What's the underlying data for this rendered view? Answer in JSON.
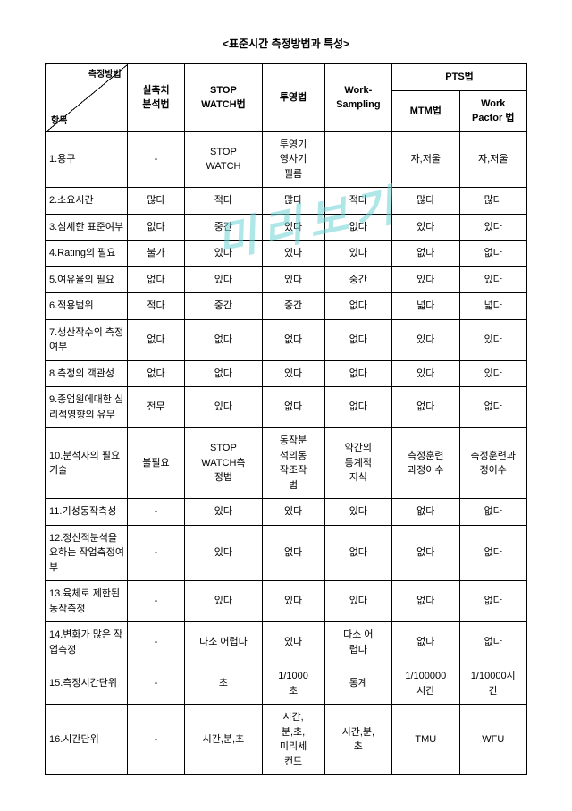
{
  "title": "<표준시간 측정방법과 특성>",
  "watermark": "미리보기",
  "header": {
    "diag_top": "측정방법",
    "diag_bottom": "항목",
    "c2": "실측치\n분석법",
    "c3": "STOP\nWATCH법",
    "c4": "투영법",
    "c5": "Work-\nSampling",
    "pts": "PTS법",
    "c6": "MTM법",
    "c7": "Work\nPactor 법"
  },
  "rows": [
    {
      "label": "1.용구",
      "c2": "-",
      "c3": "STOP\nWATCH",
      "c4": "투영기\n영사기\n필름",
      "c5": "",
      "c6": "자,저울",
      "c7": "자,저울"
    },
    {
      "label": "2.소요시간",
      "c2": "많다",
      "c3": "적다",
      "c4": "많다",
      "c5": "적다",
      "c6": "많다",
      "c7": "많다"
    },
    {
      "label": "3.섬세한 표준여부",
      "c2": "없다",
      "c3": "중간",
      "c4": "있다",
      "c5": "없다",
      "c6": "있다",
      "c7": "있다"
    },
    {
      "label": "4.Rating의 필요",
      "c2": "불가",
      "c3": "있다",
      "c4": "있다",
      "c5": "있다",
      "c6": "없다",
      "c7": "없다"
    },
    {
      "label": "5.여유율의 필요",
      "c2": "없다",
      "c3": "있다",
      "c4": "있다",
      "c5": "중간",
      "c6": "있다",
      "c7": "있다"
    },
    {
      "label": "6.적용범위",
      "c2": "적다",
      "c3": "중간",
      "c4": "중간",
      "c5": "없다",
      "c6": "넓다",
      "c7": "넓다"
    },
    {
      "label": "7.생산작수의 측정여부",
      "c2": "없다",
      "c3": "없다",
      "c4": "없다",
      "c5": "없다",
      "c6": "있다",
      "c7": "있다"
    },
    {
      "label": "8.측정의 객관성",
      "c2": "없다",
      "c3": "없다",
      "c4": "있다",
      "c5": "없다",
      "c6": "있다",
      "c7": "있다"
    },
    {
      "label": "9.종업원에대한 심리적영향의 유무",
      "c2": "전무",
      "c3": "있다",
      "c4": "없다",
      "c5": "없다",
      "c6": "없다",
      "c7": "없다"
    },
    {
      "label": "10.분석자의 필요기술",
      "c2": "불필요",
      "c3": "STOP\nWATCH측\n정법",
      "c4": "동작분\n석의동\n작조작\n법",
      "c5": "약간의\n통계적\n지식",
      "c6": "측정훈련\n과정이수",
      "c7": "측정훈련과\n정이수"
    },
    {
      "label": "11.기성동작측성",
      "c2": "-",
      "c3": "있다",
      "c4": "있다",
      "c5": "있다",
      "c6": "없다",
      "c7": "없다"
    },
    {
      "label": "12.정신적분석을 요하는 작업측정여부",
      "c2": "-",
      "c3": "있다",
      "c4": "없다",
      "c5": "없다",
      "c6": "없다",
      "c7": "없다"
    },
    {
      "label": "13.육체로 제한된 동작측정",
      "c2": "-",
      "c3": "있다",
      "c4": "있다",
      "c5": "있다",
      "c6": "없다",
      "c7": "없다"
    },
    {
      "label": "14.변화가 많은 작업측정",
      "c2": "-",
      "c3": "다소 어렵다",
      "c4": "있다",
      "c5": "다소 어\n렵다",
      "c6": "없다",
      "c7": "없다"
    },
    {
      "label": "15.측정시간단위",
      "c2": "-",
      "c3": "초",
      "c4": "1/1000\n초",
      "c5": "통계",
      "c6": "1/100000\n시간",
      "c7": "1/10000시\n간"
    },
    {
      "label": "16.시간단위",
      "c2": "-",
      "c3": "시간,분,초",
      "c4": "시간,\n분,초,\n미리세\n컨드",
      "c5": "시간,분,\n초",
      "c6": "TMU",
      "c7": "WFU"
    }
  ]
}
